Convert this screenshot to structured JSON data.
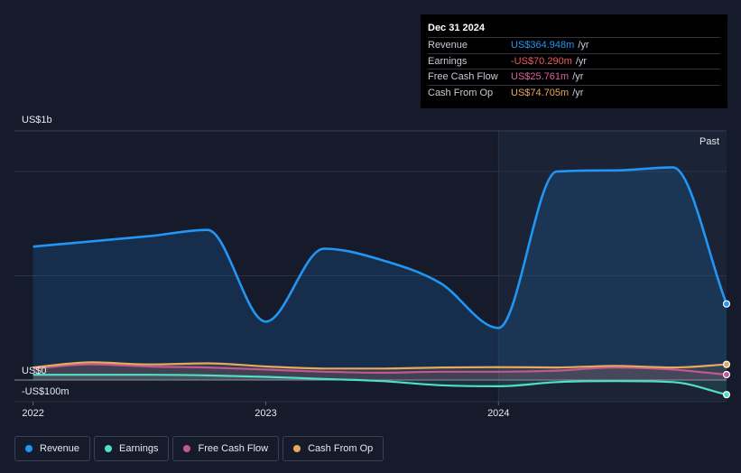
{
  "tooltip": {
    "date": "Dec 31 2024",
    "rows": [
      {
        "label": "Revenue",
        "value": "US$364.948m",
        "unit": "/yr",
        "color": "#2196f3"
      },
      {
        "label": "Earnings",
        "value": "-US$70.290m",
        "unit": "/yr",
        "color": "#f05a5a"
      },
      {
        "label": "Free Cash Flow",
        "value": "US$25.761m",
        "unit": "/yr",
        "color": "#d9629c"
      },
      {
        "label": "Cash From Op",
        "value": "US$74.705m",
        "unit": "/yr",
        "color": "#e8a95c"
      }
    ]
  },
  "past_label": "Past",
  "legend": [
    {
      "label": "Revenue",
      "color": "#2196f3"
    },
    {
      "label": "Earnings",
      "color": "#4fe0c4"
    },
    {
      "label": "Free Cash Flow",
      "color": "#c3578f"
    },
    {
      "label": "Cash From Op",
      "color": "#e8a95c"
    }
  ],
  "chart_data": {
    "type": "line",
    "y_tick_labels": [
      "US$1b",
      "US$0",
      "-US$100m"
    ],
    "y_ticks": [
      1000,
      0,
      -100
    ],
    "ylim": [
      -100,
      1000
    ],
    "xlim": [
      2021.92,
      2024.98
    ],
    "x_tick_labels": [
      "2022",
      "2023",
      "2024"
    ],
    "x_ticks": [
      2022,
      2023,
      2024
    ],
    "past_start": 2024.0,
    "series": [
      {
        "name": "Revenue",
        "color": "#2196f3",
        "points": [
          [
            2022.0,
            640
          ],
          [
            2022.25,
            665
          ],
          [
            2022.5,
            690
          ],
          [
            2022.75,
            720
          ],
          [
            2023.0,
            280
          ],
          [
            2023.25,
            630
          ],
          [
            2023.5,
            575
          ],
          [
            2023.75,
            465
          ],
          [
            2024.0,
            250
          ],
          [
            2024.25,
            1000
          ],
          [
            2024.5,
            1005
          ],
          [
            2024.75,
            1020
          ],
          [
            2024.98,
            365
          ]
        ]
      },
      {
        "name": "Earnings",
        "color": "#4fe0c4",
        "points": [
          [
            2022.0,
            25
          ],
          [
            2022.25,
            25
          ],
          [
            2022.5,
            25
          ],
          [
            2022.75,
            22
          ],
          [
            2023.0,
            15
          ],
          [
            2023.25,
            5
          ],
          [
            2023.5,
            -5
          ],
          [
            2023.75,
            -25
          ],
          [
            2024.0,
            -30
          ],
          [
            2024.25,
            -10
          ],
          [
            2024.5,
            -5
          ],
          [
            2024.75,
            -10
          ],
          [
            2024.98,
            -70
          ]
        ]
      },
      {
        "name": "Free Cash Flow",
        "color": "#c3578f",
        "points": [
          [
            2022.0,
            55
          ],
          [
            2022.25,
            75
          ],
          [
            2022.5,
            65
          ],
          [
            2022.75,
            60
          ],
          [
            2023.0,
            50
          ],
          [
            2023.25,
            40
          ],
          [
            2023.5,
            35
          ],
          [
            2023.75,
            40
          ],
          [
            2024.0,
            40
          ],
          [
            2024.25,
            45
          ],
          [
            2024.5,
            60
          ],
          [
            2024.75,
            50
          ],
          [
            2024.98,
            26
          ]
        ]
      },
      {
        "name": "Cash From Op",
        "color": "#e8a95c",
        "points": [
          [
            2022.0,
            60
          ],
          [
            2022.25,
            85
          ],
          [
            2022.5,
            75
          ],
          [
            2022.75,
            80
          ],
          [
            2023.0,
            65
          ],
          [
            2023.25,
            55
          ],
          [
            2023.5,
            55
          ],
          [
            2023.75,
            60
          ],
          [
            2024.0,
            62
          ],
          [
            2024.25,
            60
          ],
          [
            2024.5,
            68
          ],
          [
            2024.75,
            60
          ],
          [
            2024.98,
            75
          ]
        ]
      }
    ]
  }
}
